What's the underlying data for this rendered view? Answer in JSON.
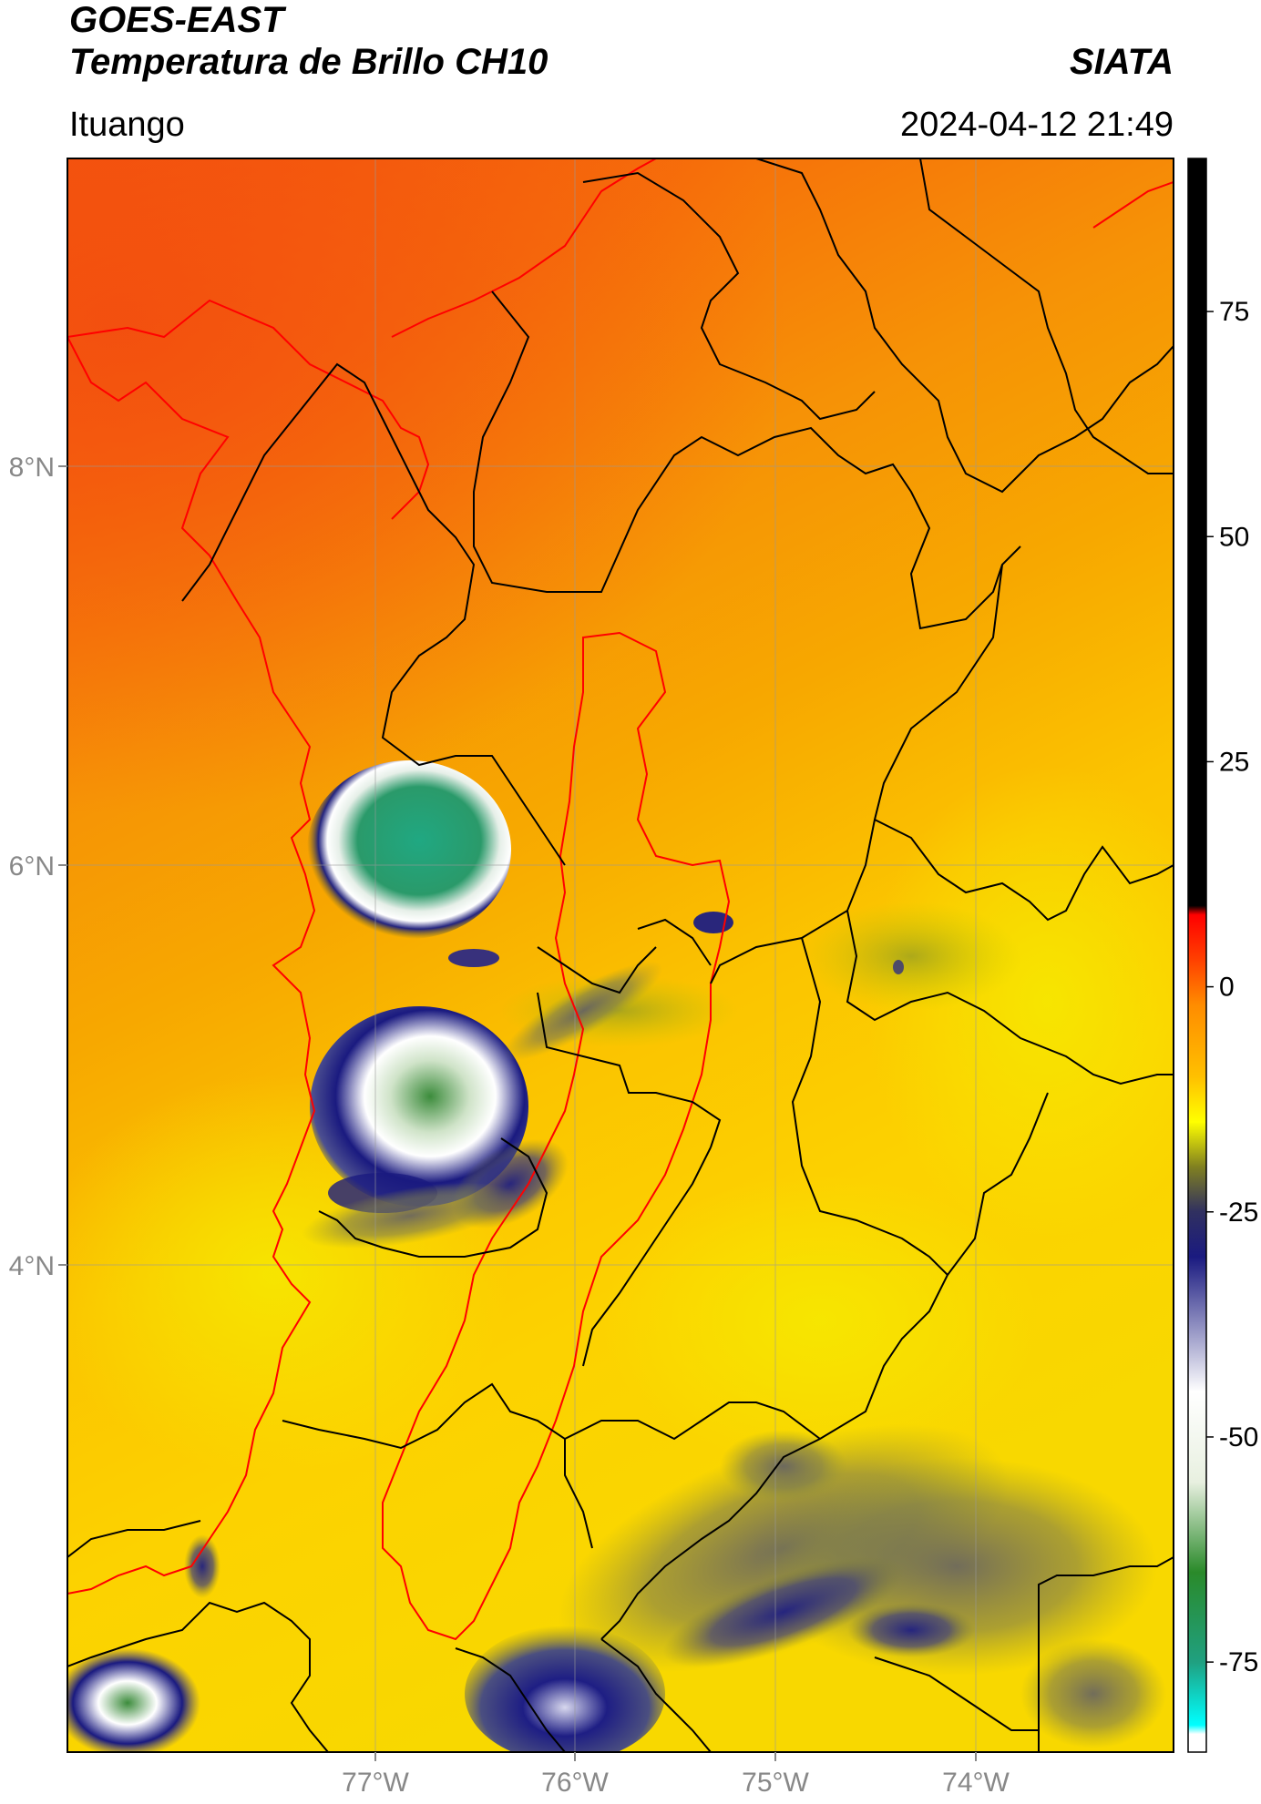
{
  "header": {
    "satellite": "GOES-EAST",
    "product": "Temperatura de Brillo CH10",
    "organization": "SIATA",
    "location": "Ituango",
    "datetime": "2024-04-12 21:49"
  },
  "map": {
    "lat_ticks": [
      "8°N",
      "6°N",
      "4°N"
    ],
    "lon_ticks": [
      "77°W",
      "76°W",
      "75°W",
      "74°W"
    ],
    "lat_range": [
      2.0,
      9.55
    ],
    "lon_range": [
      -78.55,
      -73.0
    ],
    "gridlines": true,
    "background_color": "#f48a08",
    "borders_color": "#000000",
    "highlight_border_color": "#ff0000"
  },
  "colorbar": {
    "ticks": [
      "75",
      "50",
      "25",
      "0",
      "-25",
      "-50",
      "-75"
    ],
    "range": [
      -85,
      92
    ],
    "stops": [
      {
        "value": 92,
        "color": "#000000"
      },
      {
        "value": 9,
        "color": "#000000"
      },
      {
        "value": 8,
        "color": "#ff0000"
      },
      {
        "value": 3,
        "color": "#ff4000"
      },
      {
        "value": -2,
        "color": "#ff8c00"
      },
      {
        "value": -10,
        "color": "#ffc000"
      },
      {
        "value": -15,
        "color": "#ffff00"
      },
      {
        "value": -20,
        "color": "#808020"
      },
      {
        "value": -25,
        "color": "#303060"
      },
      {
        "value": -30,
        "color": "#1a1a80"
      },
      {
        "value": -45,
        "color": "#ffffff"
      },
      {
        "value": -55,
        "color": "#e8f0e0"
      },
      {
        "value": -65,
        "color": "#2a8a2a"
      },
      {
        "value": -75,
        "color": "#20a080"
      },
      {
        "value": -82,
        "color": "#00ffff"
      },
      {
        "value": -83,
        "color": "#ffffff"
      },
      {
        "value": -85,
        "color": "#ffffff"
      }
    ]
  }
}
